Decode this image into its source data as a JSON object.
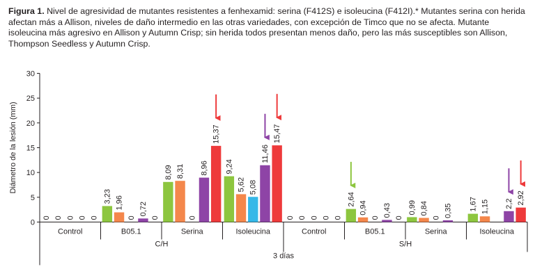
{
  "caption": {
    "label": "Figura 1.",
    "text": "Nivel de agresividad de mutantes resistentes a fenhexamid: serina (F412S) e isoleucina (F412I).* Mutantes serina con herida afectan más a Allison, niveles de daño intermedio en las otras variedades, con excepción de Timco que no se afecta. Mutante isoleucina más agresivo en Allison y Autumn Crisp; sin herida todos presentan menos daño, pero las más susceptibles son Allison, Thompson Seedless y Autumn Crisp."
  },
  "chart_data": {
    "type": "bar",
    "title": "",
    "ylabel": "Diámetro de la lesión (mm)",
    "xlabel": "3 días",
    "ylim": [
      0,
      30
    ],
    "yticks": [
      0,
      5,
      10,
      15,
      20,
      25,
      30
    ],
    "grid": false,
    "legend": "none",
    "series_colors": [
      "#8dc63f",
      "#f4874b",
      "#35b8e8",
      "#8e44a6",
      "#ee3a3b"
    ],
    "outer_groups": [
      "C/H",
      "S/H"
    ],
    "categories": [
      "Control",
      "B05.1",
      "Serina",
      "Isoleucina",
      "Control",
      "B05.1",
      "Serina",
      "Isoleucina"
    ],
    "values": [
      [
        0,
        0,
        0,
        0,
        0
      ],
      [
        3.23,
        1.96,
        0,
        0.72,
        0
      ],
      [
        8.09,
        8.31,
        0,
        8.96,
        15.37
      ],
      [
        9.24,
        5.62,
        5.08,
        11.46,
        15.47
      ],
      [
        0,
        0,
        0,
        0,
        0
      ],
      [
        2.64,
        0.94,
        0,
        0.43,
        0
      ],
      [
        0.99,
        0.84,
        0,
        0.35,
        0
      ],
      [
        1.67,
        1.15,
        0,
        2.2,
        2.92
      ]
    ],
    "value_labels": [
      [
        "0",
        "0",
        "0",
        "0",
        "0"
      ],
      [
        "3,23",
        "1,96",
        "0",
        "0,72",
        "0"
      ],
      [
        "8,09",
        "8,31",
        "0",
        "8,96",
        "15,37"
      ],
      [
        "9,24",
        "5,62",
        "5,08",
        "11,46",
        "15,47"
      ],
      [
        "0",
        "0",
        "0",
        "0",
        "0"
      ],
      [
        "2,64",
        "0,94",
        "0",
        "0,43",
        "0"
      ],
      [
        "0,99",
        "0,84",
        "0",
        "0,35",
        ""
      ],
      [
        "1,67",
        "1,15",
        "",
        "2,2",
        "2,92"
      ]
    ],
    "annotations": [
      {
        "type": "arrow",
        "category_index": 2,
        "series_index": 4,
        "color": "#ee3a3b"
      },
      {
        "type": "arrow",
        "category_index": 3,
        "series_index": 4,
        "color": "#ee3a3b"
      },
      {
        "type": "arrow",
        "category_index": 3,
        "series_index": 3,
        "color": "#8e44a6"
      },
      {
        "type": "arrow",
        "category_index": 5,
        "series_index": 0,
        "color": "#8dc63f"
      },
      {
        "type": "arrow",
        "category_index": 7,
        "series_index": 3,
        "color": "#8e44a6"
      },
      {
        "type": "arrow",
        "category_index": 7,
        "series_index": 4,
        "color": "#ee3a3b"
      }
    ]
  }
}
